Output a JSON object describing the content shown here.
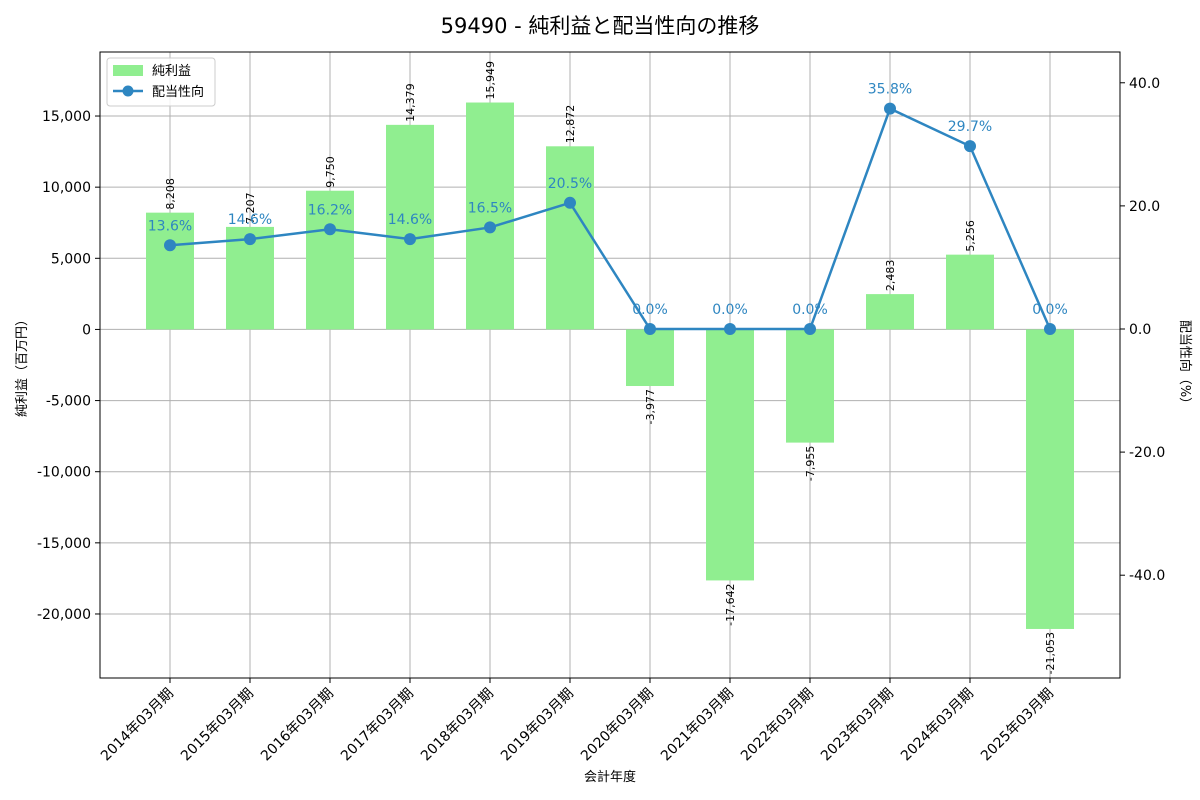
{
  "chart_data": {
    "type": "bar",
    "title": "59490 - 純利益と配当性向の推移",
    "xlabel": "会計年度",
    "ylabel_left": "純利益（百万円）",
    "ylabel_right": "配当性向（%）",
    "categories": [
      "2014年03月期",
      "2015年03月期",
      "2016年03月期",
      "2017年03月期",
      "2018年03月期",
      "2019年03月期",
      "2020年03月期",
      "2021年03月期",
      "2022年03月期",
      "2023年03月期",
      "2024年03月期",
      "2025年03月期"
    ],
    "series": [
      {
        "name": "純利益",
        "type": "bar",
        "axis": "left",
        "color": "#90ee90",
        "values": [
          8208,
          7207,
          9750,
          14379,
          15949,
          12872,
          -3977,
          -17642,
          -7955,
          2483,
          5256,
          -21053
        ],
        "labels": [
          "8,208",
          "7,207",
          "9,750",
          "14,379",
          "15,949",
          "12,872",
          "-3,977",
          "-17,642",
          "-7,955",
          "2,483",
          "5,256",
          "-21,053"
        ]
      },
      {
        "name": "配当性向",
        "type": "line",
        "axis": "right",
        "color": "#2e86c1",
        "values": [
          13.6,
          14.6,
          16.2,
          14.6,
          16.5,
          20.5,
          0.0,
          0.0,
          0.0,
          35.8,
          29.7,
          0.0
        ],
        "labels": [
          "13.6%",
          "14.6%",
          "16.2%",
          "14.6%",
          "16.5%",
          "20.5%",
          "0.0%",
          "0.0%",
          "0.0%",
          "35.8%",
          "29.7%",
          "0.0%"
        ]
      }
    ],
    "ylim_left": [
      -24500,
      19500
    ],
    "ylim_right": [
      -56.7,
      45.0
    ],
    "yticks_left": [
      {
        "value": -20000,
        "label": "-20,000"
      },
      {
        "value": -15000,
        "label": "-15,000"
      },
      {
        "value": -10000,
        "label": "-10,000"
      },
      {
        "value": -5000,
        "label": "-5,000"
      },
      {
        "value": 0,
        "label": "0"
      },
      {
        "value": 5000,
        "label": "5,000"
      },
      {
        "value": 10000,
        "label": "10,000"
      },
      {
        "value": 15000,
        "label": "15,000"
      }
    ],
    "yticks_right": [
      {
        "value": -40,
        "label": "-40.0"
      },
      {
        "value": -20,
        "label": "-20.0"
      },
      {
        "value": 0,
        "label": "0.0"
      },
      {
        "value": 20,
        "label": "20.0"
      },
      {
        "value": 40,
        "label": "40.0"
      }
    ],
    "grid": true,
    "legend_position": "top-left"
  }
}
